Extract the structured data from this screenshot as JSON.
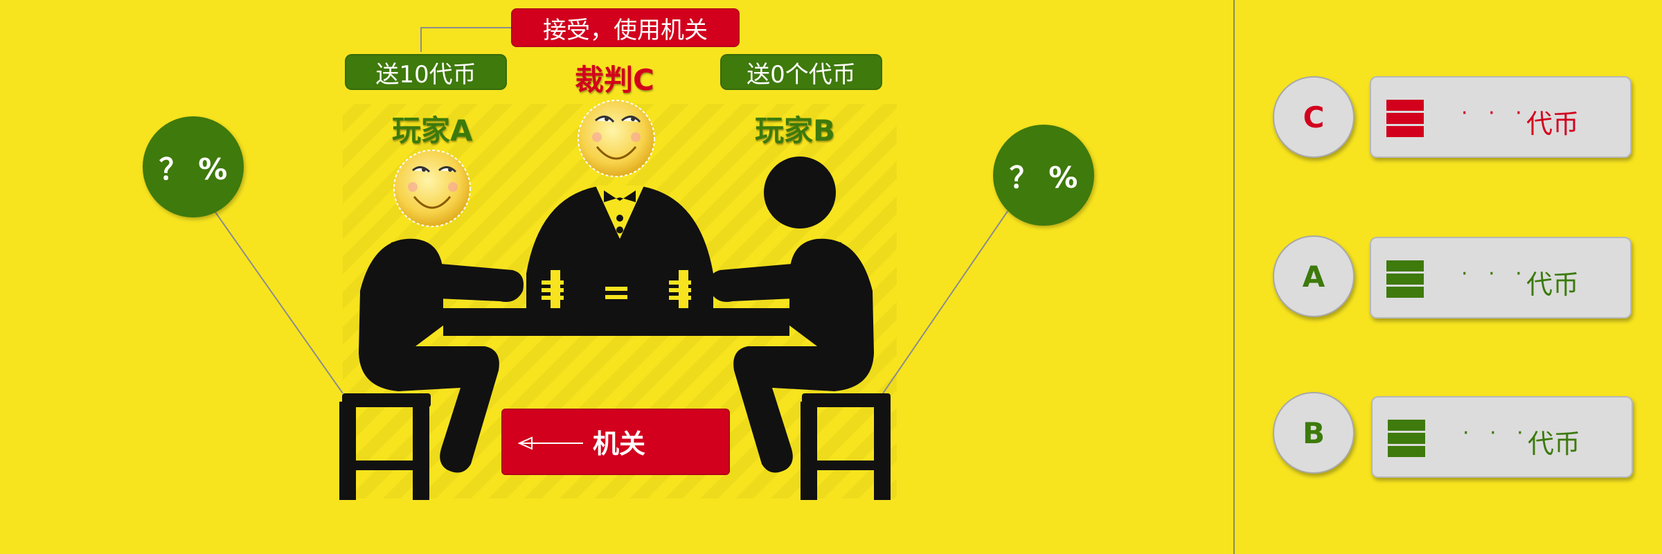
{
  "colors": {
    "background": "#f7e41f",
    "red": "#d2001d",
    "green": "#3f7a0c",
    "label_green": "#3c7a0c",
    "figure": "#111111"
  },
  "top_tag": "接受，使用机关",
  "left_tag": "送10代币",
  "right_tag": "送0个代币",
  "referee_label": "裁判C",
  "player_a_label": "玩家A",
  "player_b_label": "玩家B",
  "left_percent": "？ %",
  "right_percent": "？ %",
  "trap_label": "机关",
  "trap_icon": "left-arrow-icon",
  "panel": {
    "rows": [
      {
        "letter": "C",
        "dots": "· · ·",
        "unit": "代币",
        "color": "#d2001d"
      },
      {
        "letter": "A",
        "dots": "· · ·",
        "unit": "代币",
        "color": "#3c7a0c"
      },
      {
        "letter": "B",
        "dots": "· · ·",
        "unit": "代币",
        "color": "#3c7a0c"
      }
    ]
  }
}
